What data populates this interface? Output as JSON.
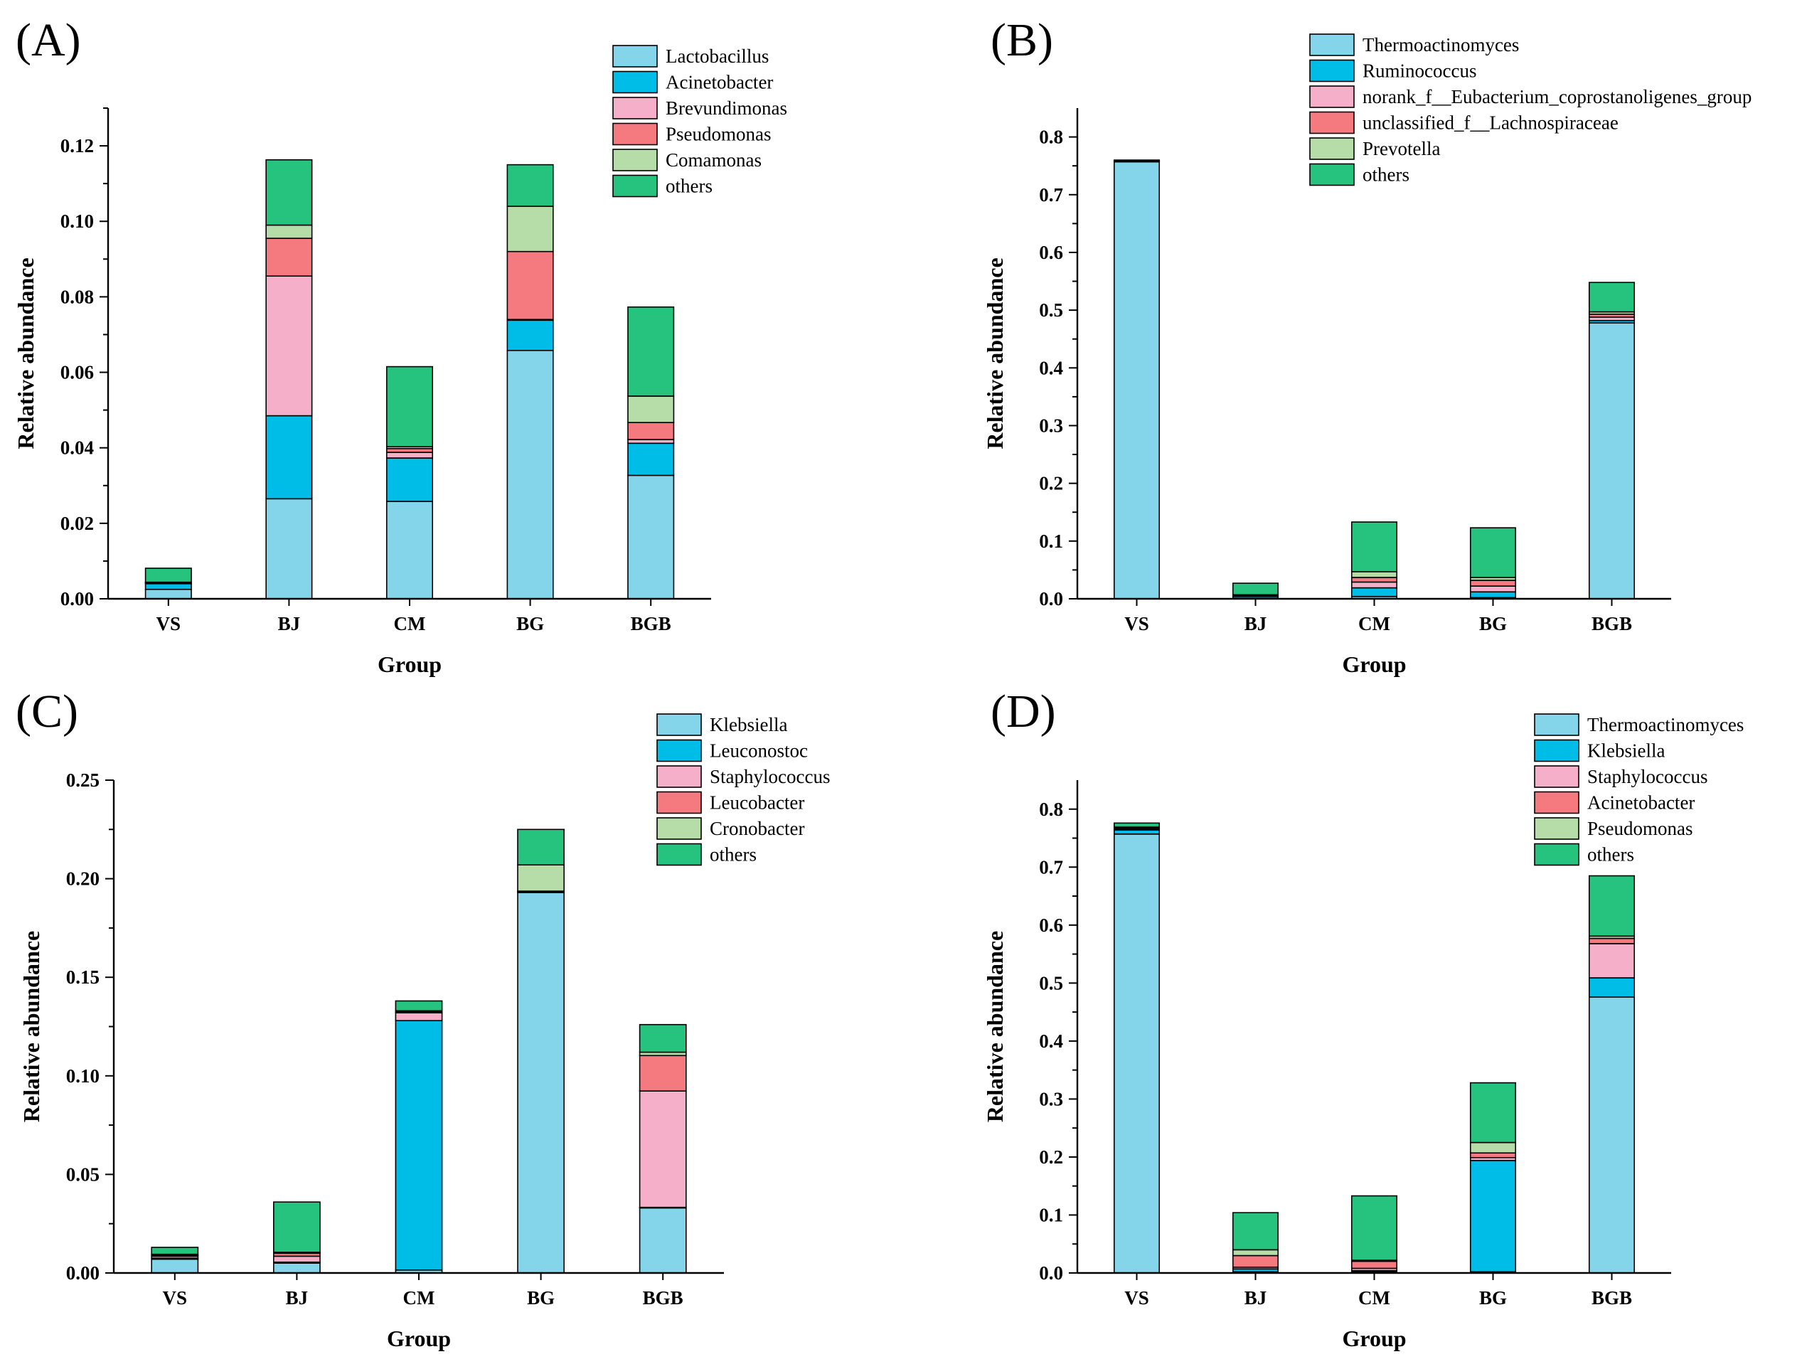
{
  "colors": {
    "c1": "#84D5EA",
    "c2": "#00BDE8",
    "c3": "#F6AFC9",
    "c4": "#F47A80",
    "c5": "#B6DCA8",
    "c6": "#26C37E"
  },
  "chart_data": [
    {
      "type": "bar",
      "stacked": true,
      "panel_label": "(A)",
      "categories": [
        "VS",
        "BJ",
        "CM",
        "BG",
        "BGB"
      ],
      "xlabel": "Group",
      "ylabel": "Relative abundance",
      "ylim": [
        0,
        0.13
      ],
      "yticks": [
        0.0,
        0.02,
        0.04,
        0.06,
        0.08,
        0.1,
        0.12
      ],
      "tick_format": 2,
      "legend_position": "top-right",
      "series": [
        {
          "name": "Lactobacillus",
          "color": "#84D5EA",
          "values": [
            0.0025,
            0.0265,
            0.0258,
            0.0658,
            0.0327
          ]
        },
        {
          "name": "Acinetobacter",
          "color": "#00BDE8",
          "values": [
            0.0015,
            0.022,
            0.0115,
            0.008,
            0.0085
          ]
        },
        {
          "name": "Brevundimonas",
          "color": "#F6AFC9",
          "values": [
            0.0002,
            0.037,
            0.0015,
            0.0002,
            0.001
          ]
        },
        {
          "name": "Pseudomonas",
          "color": "#F47A80",
          "values": [
            0.0001,
            0.01,
            0.001,
            0.018,
            0.0045
          ]
        },
        {
          "name": "Comamonas",
          "color": "#B6DCA8",
          "values": [
            0.0001,
            0.0035,
            0.0005,
            0.012,
            0.007
          ]
        },
        {
          "name": "others",
          "color": "#26C37E",
          "values": [
            0.0037,
            0.0173,
            0.0212,
            0.011,
            0.0236
          ]
        }
      ]
    },
    {
      "type": "bar",
      "stacked": true,
      "panel_label": "(B)",
      "categories": [
        "VS",
        "BJ",
        "CM",
        "BG",
        "BGB"
      ],
      "xlabel": "Group",
      "ylabel": "Relative abundance",
      "ylim": [
        0,
        0.85
      ],
      "yticks": [
        0.0,
        0.1,
        0.2,
        0.3,
        0.4,
        0.5,
        0.6,
        0.7,
        0.8
      ],
      "tick_format": 1,
      "legend_position": "top-right",
      "series": [
        {
          "name": "Thermoactinomyces",
          "color": "#84D5EA",
          "values": [
            0.757,
            0.001,
            0.004,
            0.002,
            0.478
          ]
        },
        {
          "name": "Ruminococcus",
          "color": "#00BDE8",
          "values": [
            0.0005,
            0.003,
            0.015,
            0.01,
            0.004
          ]
        },
        {
          "name": "norank_f__Eubacterium_coprostanoligenes_group",
          "color": "#F6AFC9",
          "values": [
            0.0005,
            0.001,
            0.01,
            0.01,
            0.006
          ]
        },
        {
          "name": "unclassified_f__Lachnospiraceae",
          "color": "#F47A80",
          "values": [
            0.0005,
            0.001,
            0.008,
            0.01,
            0.005
          ]
        },
        {
          "name": "Prevotella",
          "color": "#B6DCA8",
          "values": [
            0.0005,
            0.001,
            0.01,
            0.005,
            0.004
          ]
        },
        {
          "name": "others",
          "color": "#26C37E",
          "values": [
            0.001,
            0.02,
            0.086,
            0.086,
            0.051
          ]
        }
      ]
    },
    {
      "type": "bar",
      "stacked": true,
      "panel_label": "(C)",
      "categories": [
        "VS",
        "BJ",
        "CM",
        "BG",
        "BGB"
      ],
      "xlabel": "Group",
      "ylabel": "Relative abundance",
      "ylim": [
        0,
        0.25
      ],
      "yticks": [
        0.0,
        0.05,
        0.1,
        0.15,
        0.2,
        0.25
      ],
      "tick_format": 2,
      "legend_position": "top-right",
      "series": [
        {
          "name": "Klebsiella",
          "color": "#84D5EA",
          "values": [
            0.007,
            0.005,
            0.0015,
            0.193,
            0.033
          ]
        },
        {
          "name": "Leuconostoc",
          "color": "#00BDE8",
          "values": [
            0.0005,
            0.0005,
            0.1265,
            0.0003,
            0.0003
          ]
        },
        {
          "name": "Staphylococcus",
          "color": "#F6AFC9",
          "values": [
            0.001,
            0.003,
            0.004,
            0.0002,
            0.059
          ]
        },
        {
          "name": "Leucobacter",
          "color": "#F47A80",
          "values": [
            0.0005,
            0.0015,
            0.0005,
            0.0002,
            0.018
          ]
        },
        {
          "name": "Cronobacter",
          "color": "#B6DCA8",
          "values": [
            0.0005,
            0.0005,
            0.0005,
            0.0133,
            0.0017
          ]
        },
        {
          "name": "others",
          "color": "#26C37E",
          "values": [
            0.0035,
            0.0255,
            0.005,
            0.018,
            0.014
          ]
        }
      ]
    },
    {
      "type": "bar",
      "stacked": true,
      "panel_label": "(D)",
      "categories": [
        "VS",
        "BJ",
        "CM",
        "BG",
        "BGB"
      ],
      "xlabel": "Group",
      "ylabel": "Relative abundance",
      "ylim": [
        0,
        0.85
      ],
      "yticks": [
        0.0,
        0.1,
        0.2,
        0.3,
        0.4,
        0.5,
        0.6,
        0.7,
        0.8
      ],
      "tick_format": 1,
      "legend_position": "top-right",
      "series": [
        {
          "name": "Thermoactinomyces",
          "color": "#84D5EA",
          "values": [
            0.757,
            0.002,
            0.002,
            0.002,
            0.476
          ]
        },
        {
          "name": "Klebsiella",
          "color": "#00BDE8",
          "values": [
            0.007,
            0.005,
            0.002,
            0.192,
            0.033
          ]
        },
        {
          "name": "Staphylococcus",
          "color": "#F6AFC9",
          "values": [
            0.002,
            0.003,
            0.004,
            0.005,
            0.059
          ]
        },
        {
          "name": "Acinetobacter",
          "color": "#F47A80",
          "values": [
            0.002,
            0.02,
            0.012,
            0.008,
            0.009
          ]
        },
        {
          "name": "Pseudomonas",
          "color": "#B6DCA8",
          "values": [
            0.001,
            0.01,
            0.002,
            0.018,
            0.004
          ]
        },
        {
          "name": "others",
          "color": "#26C37E",
          "values": [
            0.007,
            0.064,
            0.111,
            0.103,
            0.104
          ]
        }
      ]
    }
  ]
}
